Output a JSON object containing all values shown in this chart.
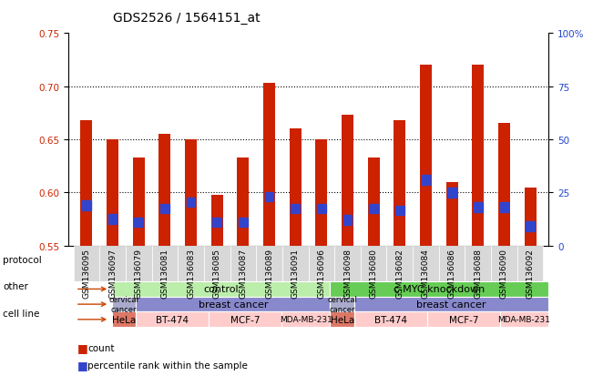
{
  "title": "GDS2526 / 1564151_at",
  "samples": [
    "GSM136095",
    "GSM136097",
    "GSM136079",
    "GSM136081",
    "GSM136083",
    "GSM136085",
    "GSM136087",
    "GSM136089",
    "GSM136091",
    "GSM136096",
    "GSM136098",
    "GSM136080",
    "GSM136082",
    "GSM136084",
    "GSM136086",
    "GSM136088",
    "GSM136090",
    "GSM136092"
  ],
  "bar_values": [
    0.668,
    0.65,
    0.633,
    0.655,
    0.65,
    0.598,
    0.633,
    0.703,
    0.66,
    0.65,
    0.673,
    0.633,
    0.668,
    0.72,
    0.61,
    0.72,
    0.665,
    0.605
  ],
  "blue_marks": [
    0.588,
    0.575,
    0.572,
    0.585,
    0.591,
    0.572,
    0.572,
    0.596,
    0.585,
    0.585,
    0.574,
    0.585,
    0.583,
    0.612,
    0.6,
    0.586,
    0.586,
    0.568
  ],
  "ylim_left": [
    0.55,
    0.75
  ],
  "ylim_right": [
    0,
    100
  ],
  "yticks_left": [
    0.55,
    0.6,
    0.65,
    0.7,
    0.75
  ],
  "yticks_right": [
    0,
    25,
    50,
    75,
    100
  ],
  "ytick_labels_right": [
    "0",
    "25",
    "50",
    "75",
    "100%"
  ],
  "bar_color": "#cc2200",
  "blue_color": "#3344cc",
  "bar_bottom": 0.55,
  "bar_color_light": "#cc3300",
  "protocol_control_color": "#bbeeaa",
  "protocol_knockdown_color": "#66cc55",
  "other_cervical_color": "#aaaacc",
  "other_breast_color": "#8888cc",
  "hela_color": "#dd7766",
  "other_cell_color": "#ffcccc",
  "tick_fontsize": 7.5,
  "xlabel_fontsize": 6.5,
  "title_fontsize": 10
}
